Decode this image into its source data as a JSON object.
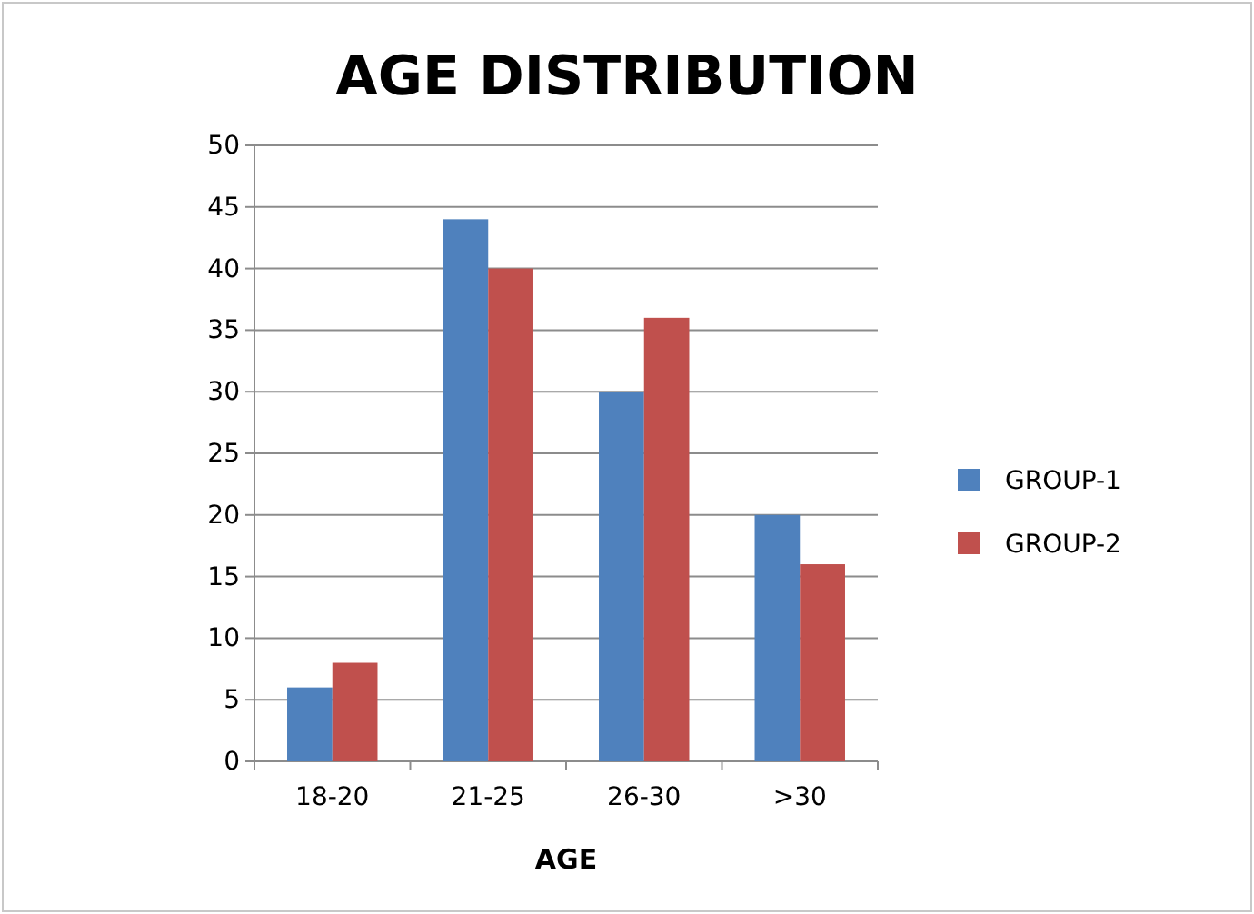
{
  "chart_data": {
    "type": "bar",
    "title": "AGE DISTRIBUTION",
    "xlabel": "AGE",
    "categories": [
      "18-20",
      "21-25",
      "26-30",
      ">30"
    ],
    "series": [
      {
        "name": "GROUP-1",
        "color": "#4f81bd",
        "values": [
          6,
          44,
          30,
          20
        ]
      },
      {
        "name": "GROUP-2",
        "color": "#c0504d",
        "values": [
          8,
          40,
          36,
          16
        ]
      }
    ],
    "ylim": [
      0,
      50
    ],
    "yticks": [
      0,
      5,
      10,
      15,
      20,
      25,
      30,
      35,
      40,
      45,
      50
    ],
    "grid": "y",
    "legend": "right"
  }
}
